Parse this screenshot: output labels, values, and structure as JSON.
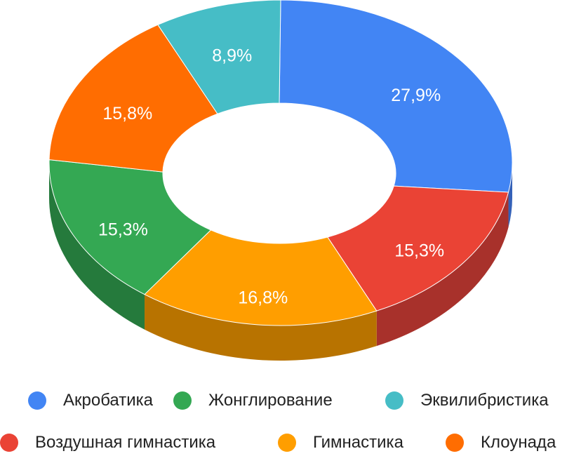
{
  "chart_data": {
    "type": "pie",
    "variant": "3d-donut",
    "title": "",
    "slices": [
      {
        "name": "Акробатика",
        "label": "27,9%",
        "value": 27.9,
        "color": "#4285f4",
        "side_color": "#3461b8"
      },
      {
        "name": "Воздушная гимнастика",
        "label": "15,3%",
        "value": 15.3,
        "color": "#ea4335",
        "side_color": "#a8312b"
      },
      {
        "name": "Гимнастика",
        "label": "16,8%",
        "value": 16.8,
        "color": "#ff9e00",
        "side_color": "#b87300"
      },
      {
        "name": "Жонглирование",
        "label": "15,3%",
        "value": 15.3,
        "color": "#34a853",
        "side_color": "#257a3c"
      },
      {
        "name": "Клоунада",
        "label": "15,8%",
        "value": 15.8,
        "color": "#ff6d01",
        "side_color": "#b84f01"
      },
      {
        "name": "Эквилибристика",
        "label": "8,9%",
        "value": 8.9,
        "color": "#46bdc6",
        "side_color": "#338a90"
      }
    ],
    "legend": {
      "position": "bottom",
      "items": [
        {
          "label": "Акробатика",
          "color": "#4285f4"
        },
        {
          "label": "Жонглирование",
          "color": "#34a853"
        },
        {
          "label": "Эквилибристика",
          "color": "#46bdc6"
        },
        {
          "label": "Воздушная гимнастика",
          "color": "#ea4335"
        },
        {
          "label": "Гимнастика",
          "color": "#ff9e00"
        },
        {
          "label": "Клоунада",
          "color": "#ff6d01"
        }
      ]
    }
  }
}
